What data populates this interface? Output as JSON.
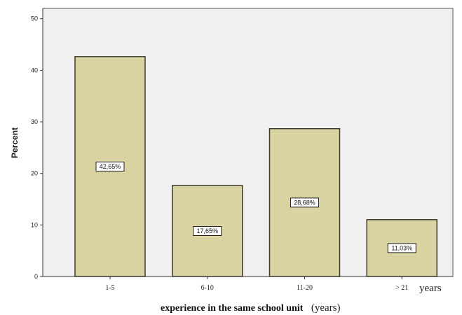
{
  "chart_data": {
    "type": "bar",
    "categories": [
      "1-5",
      "6-10",
      "11-20",
      "> 21"
    ],
    "values": [
      42.65,
      17.65,
      28.68,
      11.03
    ],
    "data_labels": [
      "42,65%",
      "17,65%",
      "28,68%",
      "11,03%"
    ],
    "ylabel": "Percent",
    "xlabel": "experience in the same school unit",
    "xlabel_suffix": "(years)",
    "x_unit_label": "years",
    "yticks": [
      0,
      10,
      20,
      30,
      40,
      50
    ],
    "ylim": [
      0,
      52
    ],
    "grid": false,
    "colors": {
      "bar_fill": "#d8d3a0",
      "bar_stroke": "#3a3a2a",
      "plot_bg": "#f0f0f0",
      "plot_border": "#555555"
    }
  }
}
